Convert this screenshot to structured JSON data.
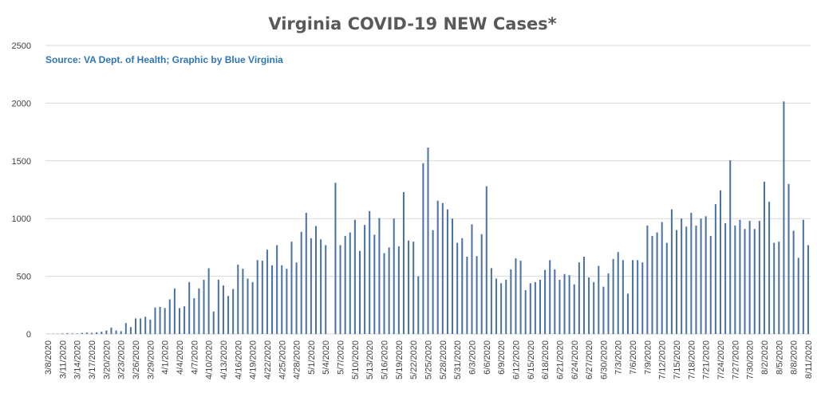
{
  "chart_data": {
    "type": "bar",
    "title": "Virginia COVID-19 NEW Cases*",
    "subtitle": "Source: VA Dept. of Health; Graphic by Blue Virginia",
    "xlabel": "",
    "ylabel": "",
    "ylim": [
      0,
      2500
    ],
    "yticks": [
      0,
      500,
      1000,
      1500,
      2000,
      2500
    ],
    "grid": true,
    "bar_color": "#4a72a8",
    "start_date": "2020-03-08",
    "tick_labels": [
      "3/8/2020",
      "3/11/2020",
      "3/14/2020",
      "3/17/2020",
      "3/20/2020",
      "3/23/2020",
      "3/26/2020",
      "3/29/2020",
      "4/1/2020",
      "4/4/2020",
      "4/7/2020",
      "4/10/2020",
      "4/13/2020",
      "4/16/2020",
      "4/19/2020",
      "4/22/2020",
      "4/25/2020",
      "4/28/2020",
      "5/1/2020",
      "5/4/2020",
      "5/7/2020",
      "5/10/2020",
      "5/13/2020",
      "5/16/2020",
      "5/19/2020",
      "5/22/2020",
      "5/25/2020",
      "5/28/2020",
      "5/31/2020",
      "6/3/2020",
      "6/6/2020",
      "6/9/2020",
      "6/12/2020",
      "6/15/2020",
      "6/18/2020",
      "6/21/2020",
      "6/24/2020",
      "6/27/2020",
      "6/30/2020",
      "7/3/2020",
      "7/6/2020",
      "7/9/2020",
      "7/12/2020",
      "7/15/2020",
      "7/18/2020",
      "7/21/2020",
      "7/24/2020",
      "7/27/2020",
      "7/30/2020",
      "8/2/2020",
      "8/5/2020",
      "8/8/2020",
      "8/11/2020"
    ],
    "values": [
      2,
      2,
      2,
      5,
      8,
      5,
      5,
      10,
      12,
      10,
      15,
      20,
      30,
      55,
      30,
      25,
      95,
      60,
      135,
      135,
      150,
      125,
      230,
      235,
      225,
      300,
      395,
      225,
      240,
      450,
      310,
      395,
      470,
      570,
      195,
      470,
      420,
      330,
      390,
      600,
      565,
      480,
      450,
      640,
      635,
      730,
      595,
      770,
      595,
      565,
      800,
      620,
      885,
      1050,
      830,
      935,
      820,
      770,
      0,
      1310,
      770,
      850,
      880,
      990,
      720,
      945,
      1065,
      860,
      1005,
      700,
      750,
      1000,
      760,
      1230,
      810,
      800,
      500,
      1480,
      1615,
      900,
      1155,
      1135,
      1080,
      1000,
      790,
      830,
      670,
      950,
      675,
      865,
      1280,
      570,
      480,
      440,
      470,
      560,
      655,
      635,
      380,
      440,
      450,
      470,
      555,
      640,
      560,
      470,
      520,
      510,
      430,
      620,
      670,
      490,
      450,
      590,
      410,
      525,
      650,
      710,
      640,
      350,
      640,
      640,
      620,
      940,
      850,
      880,
      970,
      790,
      1080,
      900,
      1000,
      930,
      1050,
      940,
      1000,
      1020,
      850,
      1125,
      1245,
      960,
      1505,
      940,
      990,
      910,
      980,
      910,
      980,
      1320,
      1145,
      790,
      800,
      2015,
      1300,
      895,
      660,
      990,
      770
    ]
  }
}
